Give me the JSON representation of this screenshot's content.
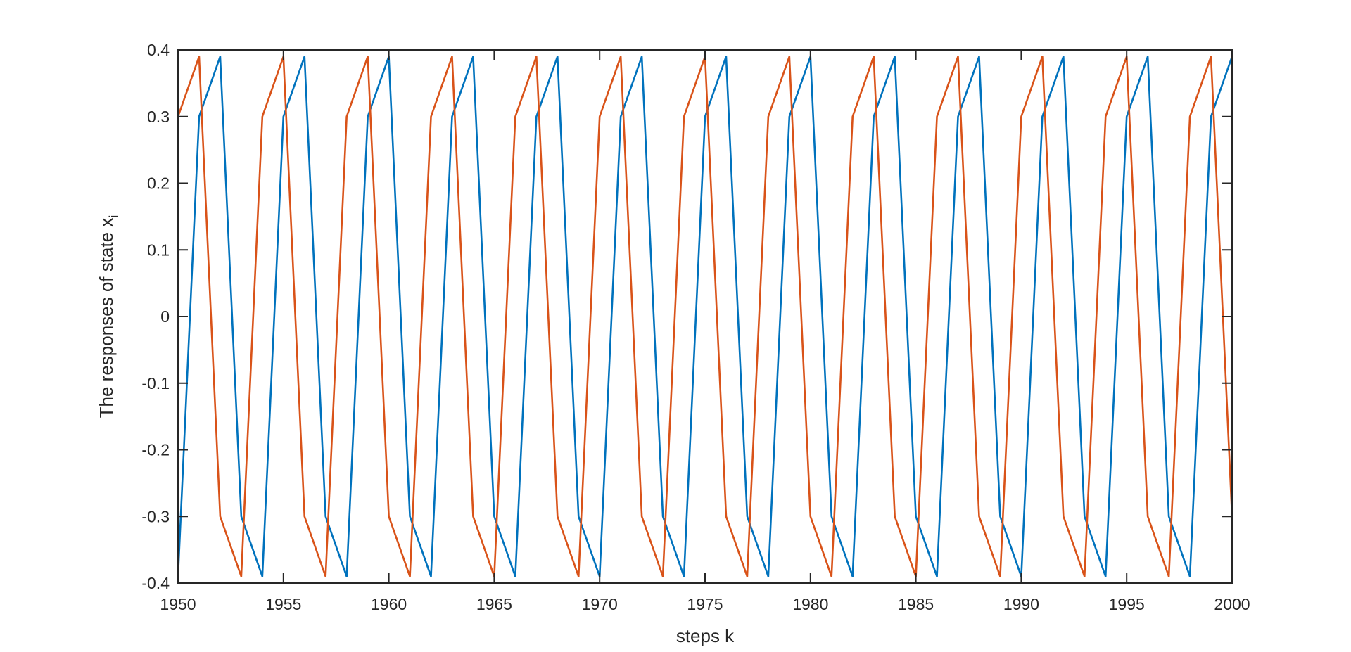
{
  "chart_data": {
    "type": "line",
    "title": "",
    "xlabel": "steps k",
    "ylabel": "The responses of state x",
    "ylabel_subscript": "i",
    "xlim": [
      1950,
      2000
    ],
    "ylim": [
      -0.4,
      0.4
    ],
    "x_ticks": [
      1950,
      1955,
      1960,
      1965,
      1970,
      1975,
      1980,
      1985,
      1990,
      1995,
      2000
    ],
    "y_ticks": [
      0.4,
      0.3,
      0.2,
      0.1,
      0,
      -0.1,
      -0.2,
      -0.3,
      -0.4
    ],
    "x_tick_labels": [
      "1950",
      "1955",
      "1960",
      "1965",
      "1970",
      "1975",
      "1980",
      "1985",
      "1990",
      "1995",
      "2000"
    ],
    "y_tick_labels": [
      "0.4",
      "0.3",
      "0.2",
      "0.1",
      "0",
      "-0.1",
      "-0.2",
      "-0.3",
      "-0.4"
    ],
    "grid": false,
    "box": true,
    "pattern_period": 4,
    "pattern_values": [
      -0.39,
      0.3,
      0.39,
      -0.3
    ],
    "series": [
      {
        "color": "#0072BD",
        "start_phase": 0,
        "x_start": 1950,
        "x_end": 2000
      },
      {
        "color": "#D95319",
        "start_phase": 1,
        "x_start": 1950,
        "x_end": 2000
      }
    ]
  }
}
